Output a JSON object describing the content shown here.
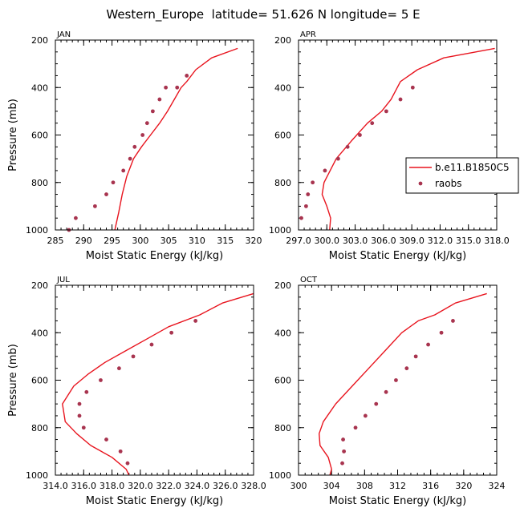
{
  "figure_title": "Western_Europe  latitude= 51.626 N longitude= 5 E",
  "colors": {
    "model": "#e8141e",
    "obs": "#a8344f",
    "axis": "#000000"
  },
  "chart_data": [
    {
      "type": "line",
      "panel": "JAN",
      "title": "JAN",
      "xlabel": "Moist Static Energy (kJ/kg)",
      "ylabel": "Pressure (mb)",
      "xlim": [
        285,
        320
      ],
      "ylim": [
        1000,
        200
      ],
      "xticks": [
        285,
        290,
        295,
        300,
        305,
        310,
        315,
        320
      ],
      "xtick_labels": [
        "285",
        "290",
        "295",
        "300",
        "305",
        "310",
        "315",
        "320"
      ],
      "yticks": [
        200,
        400,
        600,
        800,
        1000
      ],
      "ytick_labels": [
        "200",
        "400",
        "600",
        "800",
        "1000"
      ],
      "series": [
        {
          "name": "b.e11.B1850C5",
          "style": "line",
          "x": [
            295.5,
            296.2,
            296.8,
            297.6,
            298.8,
            300.2,
            301.8,
            303.4,
            304.8,
            306.0,
            307.2,
            308.2,
            309.8,
            312.6,
            317.2
          ],
          "y": [
            1000,
            925,
            850,
            775,
            700,
            650,
            600,
            550,
            500,
            450,
            400,
            375,
            325,
            275,
            235
          ]
        },
        {
          "name": "raobs",
          "style": "markers",
          "x": [
            287.4,
            288.6,
            292.0,
            294.0,
            295.2,
            297.0,
            298.2,
            299.0,
            300.4,
            301.2,
            302.2,
            303.4,
            304.5,
            306.5,
            308.2
          ],
          "y": [
            1000,
            950,
            900,
            850,
            800,
            750,
            700,
            650,
            600,
            550,
            500,
            450,
            400,
            400,
            350
          ]
        }
      ]
    },
    {
      "type": "line",
      "panel": "APR",
      "title": "APR",
      "xlabel": "Moist Static Energy (kJ/kg)",
      "ylabel": "",
      "xlim": [
        297.0,
        318.0
      ],
      "ylim": [
        1000,
        200
      ],
      "xticks": [
        297.0,
        300.0,
        303.0,
        306.0,
        309.0,
        312.0,
        315.0,
        318.0
      ],
      "xtick_labels": [
        "297.0",
        "300.0",
        "303.0",
        "306.0",
        "309.0",
        "312.0",
        "315.0",
        "318.0"
      ],
      "yticks": [
        200,
        400,
        600,
        800,
        1000
      ],
      "ytick_labels": [
        "200",
        "400",
        "600",
        "800",
        "1000"
      ],
      "legend": {
        "placement": "right",
        "entries": [
          "b.e11.B1850C5",
          "raobs"
        ]
      },
      "series": [
        {
          "name": "b.e11.B1850C5",
          "style": "line",
          "x": [
            300.3,
            300.4,
            300.0,
            299.5,
            299.7,
            301.0,
            302.6,
            304.3,
            305.8,
            306.8,
            307.8,
            309.6,
            312.4,
            317.8
          ],
          "y": [
            1000,
            950,
            900,
            850,
            800,
            700,
            625,
            550,
            500,
            450,
            375,
            325,
            275,
            235
          ]
        },
        {
          "name": "raobs",
          "style": "markers",
          "x": [
            297.3,
            297.8,
            298.0,
            298.5,
            299.8,
            301.2,
            302.2,
            303.5,
            304.8,
            306.3,
            307.8,
            309.1
          ],
          "y": [
            950,
            900,
            850,
            800,
            750,
            700,
            650,
            600,
            550,
            500,
            450,
            400
          ]
        }
      ]
    },
    {
      "type": "line",
      "panel": "JUL",
      "title": "JUL",
      "xlabel": "Moist Static Energy (kJ/kg)",
      "ylabel": "Pressure (mb)",
      "xlim": [
        314.0,
        328.0
      ],
      "ylim": [
        1000,
        200
      ],
      "xticks": [
        314.0,
        316.0,
        318.0,
        320.0,
        322.0,
        324.0,
        326.0,
        328.0
      ],
      "xtick_labels": [
        "314.0",
        "316.0",
        "318.0",
        "320.0",
        "322.0",
        "324.0",
        "326.0",
        "328.0"
      ],
      "yticks": [
        200,
        400,
        600,
        800,
        1000
      ],
      "ytick_labels": [
        "200",
        "400",
        "600",
        "800",
        "1000"
      ],
      "series": [
        {
          "name": "b.e11.B1850C5",
          "style": "line",
          "x": [
            319.2,
            319.0,
            318.0,
            316.5,
            315.5,
            314.7,
            314.5,
            315.3,
            316.3,
            317.5,
            319.0,
            320.5,
            322.0,
            324.2,
            325.8,
            328.0
          ],
          "y": [
            1000,
            975,
            925,
            875,
            825,
            775,
            700,
            625,
            575,
            525,
            475,
            425,
            375,
            325,
            275,
            235
          ]
        },
        {
          "name": "raobs",
          "style": "markers",
          "x": [
            319.1,
            318.6,
            317.6,
            316.0,
            315.7,
            315.7,
            316.2,
            317.2,
            318.5,
            319.5,
            320.8,
            322.2,
            323.9
          ],
          "y": [
            950,
            900,
            850,
            800,
            750,
            700,
            650,
            600,
            550,
            500,
            450,
            400,
            350
          ]
        }
      ]
    },
    {
      "type": "line",
      "panel": "OCT",
      "title": "OCT",
      "xlabel": "Moist Static Energy (kJ/kg)",
      "ylabel": "",
      "xlim": [
        300,
        324
      ],
      "ylim": [
        1000,
        200
      ],
      "xticks": [
        300,
        304,
        308,
        312,
        316,
        320,
        324
      ],
      "xtick_labels": [
        "300",
        "304",
        "308",
        "312",
        "316",
        "320",
        "324"
      ],
      "yticks": [
        200,
        400,
        600,
        800,
        1000
      ],
      "ytick_labels": [
        "200",
        "400",
        "600",
        "800",
        "1000"
      ],
      "series": [
        {
          "name": "b.e11.B1850C5",
          "style": "line",
          "x": [
            303.8,
            304.0,
            303.6,
            302.6,
            302.5,
            303.0,
            304.5,
            306.5,
            308.5,
            310.5,
            312.5,
            314.5,
            316.5,
            319.0,
            322.8
          ],
          "y": [
            1000,
            975,
            925,
            875,
            825,
            775,
            700,
            625,
            550,
            475,
            400,
            350,
            325,
            275,
            235
          ]
        },
        {
          "name": "raobs",
          "style": "markers",
          "x": [
            305.3,
            305.5,
            305.4,
            306.9,
            308.1,
            309.4,
            310.6,
            311.8,
            313.1,
            314.2,
            315.7,
            317.3,
            318.7
          ],
          "y": [
            950,
            900,
            850,
            800,
            750,
            700,
            650,
            600,
            550,
            500,
            450,
            400,
            350
          ]
        }
      ]
    }
  ]
}
